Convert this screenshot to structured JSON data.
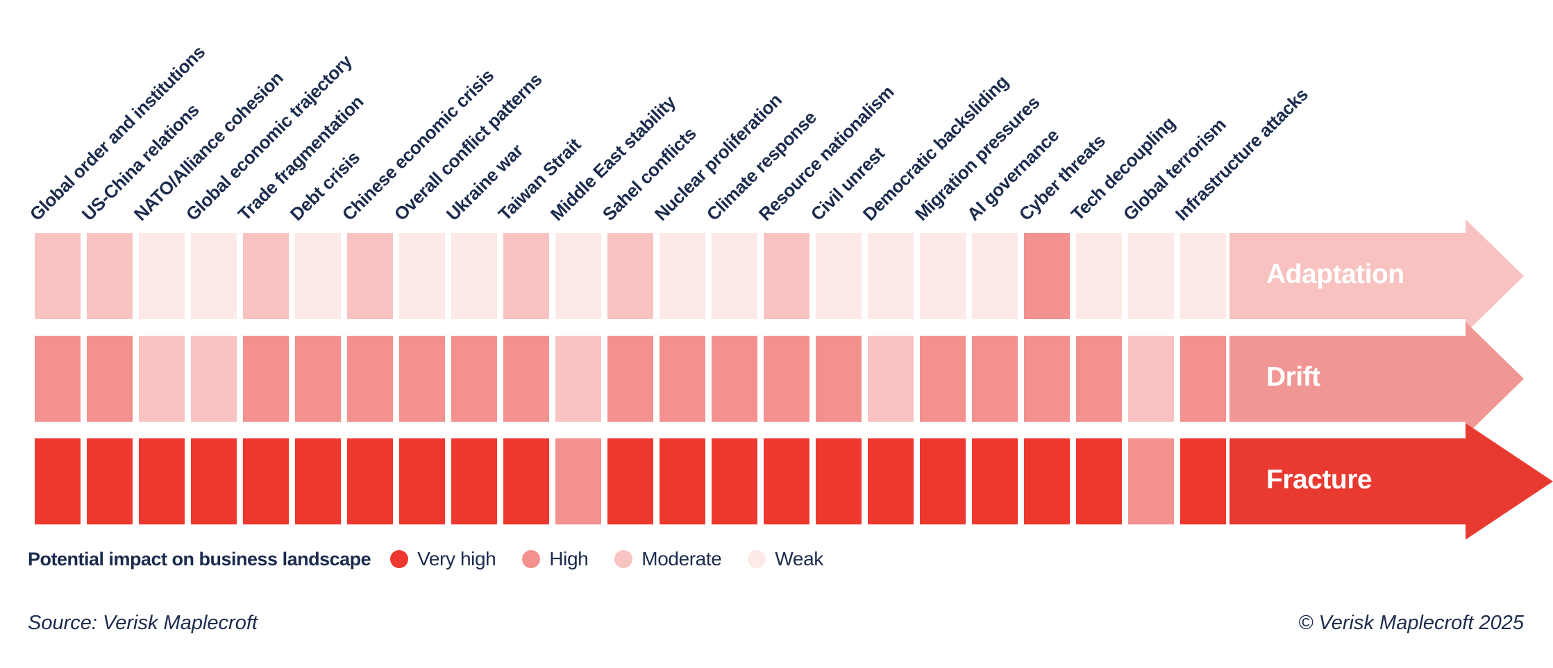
{
  "chart_data": {
    "type": "heatmap",
    "title": "",
    "categories": [
      "Global order and institutions",
      "US-China relations",
      "NATO/Alliance cohesion",
      "Global economic trajectory",
      "Trade fragmentation",
      "Debt crisis",
      "Chinese economic crisis",
      "Overall conflict patterns",
      "Ukraine war",
      "Taiwan Strait",
      "Middle East stability",
      "Sahel conflicts",
      "Nuclear proliferation",
      "Climate response",
      "Resource nationalism",
      "Civil unrest",
      "Democratic backsliding",
      "Migration pressures",
      "AI governance",
      "Cyber threats",
      "Tech decoupling",
      "Global terrorism",
      "Infrastructure attacks"
    ],
    "level_colors": {
      "very_high": "#EE382F",
      "high": "#F2918D",
      "moderate": "#F8C3C1",
      "weak": "#FDE9E7"
    },
    "series": [
      {
        "name": "Adaptation",
        "arrow_color": "#F7C2C0",
        "values": [
          "moderate",
          "moderate",
          "weak",
          "weak",
          "moderate",
          "weak",
          "moderate",
          "weak",
          "weak",
          "moderate",
          "weak",
          "moderate",
          "weak",
          "weak",
          "moderate",
          "weak",
          "weak",
          "weak",
          "weak",
          "high",
          "weak",
          "weak",
          "weak"
        ]
      },
      {
        "name": "Drift",
        "arrow_color": "#F09694",
        "values": [
          "high",
          "high",
          "moderate",
          "moderate",
          "high",
          "high",
          "high",
          "high",
          "high",
          "high",
          "moderate",
          "high",
          "high",
          "high",
          "high",
          "high",
          "moderate",
          "high",
          "high",
          "high",
          "high",
          "moderate",
          "high"
        ]
      },
      {
        "name": "Fracture",
        "arrow_color": "#E93A31",
        "values": [
          "very_high",
          "very_high",
          "very_high",
          "very_high",
          "very_high",
          "very_high",
          "very_high",
          "very_high",
          "very_high",
          "very_high",
          "high",
          "very_high",
          "very_high",
          "very_high",
          "very_high",
          "very_high",
          "very_high",
          "very_high",
          "very_high",
          "very_high",
          "very_high",
          "high",
          "very_high"
        ]
      }
    ],
    "legend": {
      "title": "Potential impact on business landscape",
      "items": [
        {
          "label": "Very high",
          "level": "very_high"
        },
        {
          "label": "High",
          "level": "high"
        },
        {
          "label": "Moderate",
          "level": "moderate"
        },
        {
          "label": "Weak",
          "level": "weak"
        }
      ],
      "position": "bottom-left"
    },
    "layout": {
      "grid_on": false,
      "rows": [
        "Adaptation",
        "Drift",
        "Fracture"
      ],
      "column_label_rotation_deg": -45
    }
  },
  "footer": {
    "source": "Source: Verisk Maplecroft",
    "copyright": "© Verisk Maplecroft 2025"
  },
  "colors": {
    "text": "#1B2B4D",
    "background": "#FFFFFF"
  }
}
